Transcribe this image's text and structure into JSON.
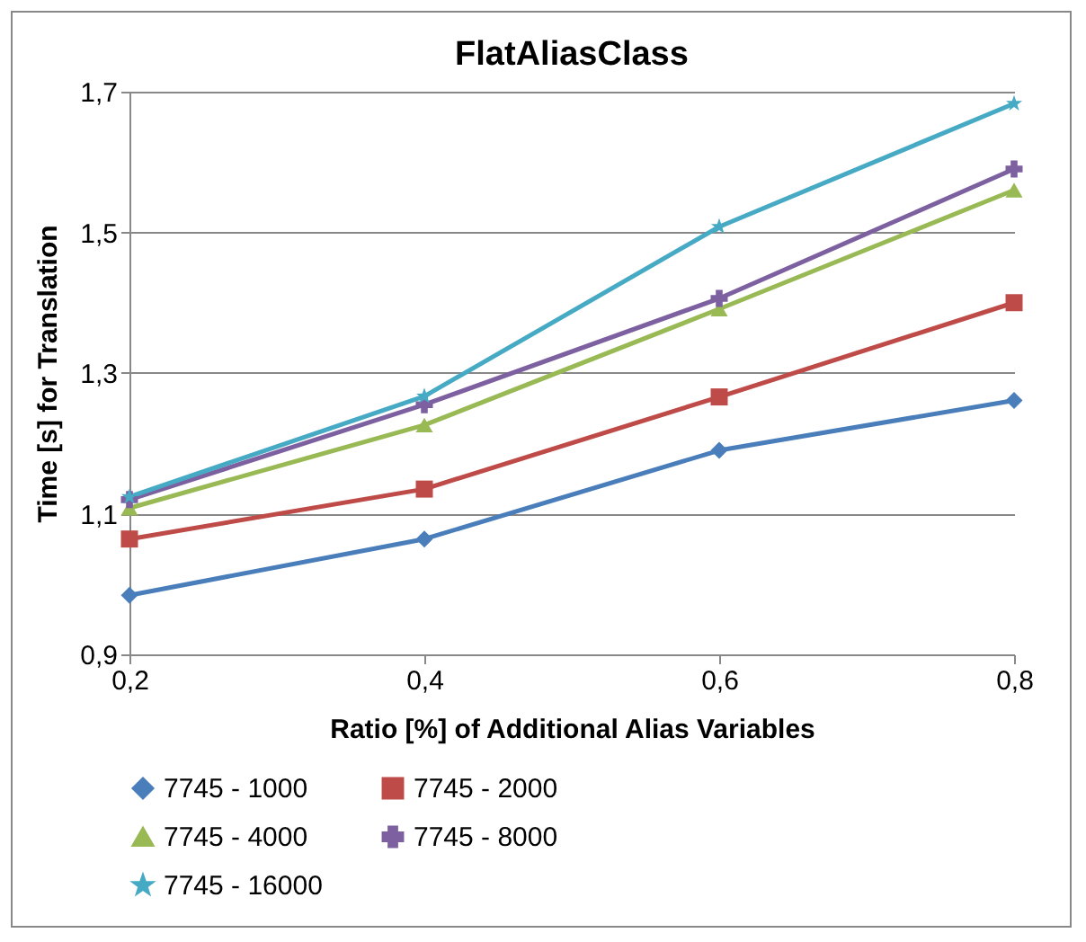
{
  "chart_data": {
    "type": "line",
    "title": "FlatAliasClass",
    "xlabel": "Ratio [%] of Additional Alias Variables",
    "ylabel": "Time [s] for Translation",
    "x": [
      0.2,
      0.4,
      0.6,
      0.8
    ],
    "xlim": [
      0.2,
      0.8
    ],
    "xticks": [
      {
        "value": 0.2,
        "label": "0,2"
      },
      {
        "value": 0.4,
        "label": "0,4"
      },
      {
        "value": 0.6,
        "label": "0,6"
      },
      {
        "value": 0.8,
        "label": "0,8"
      }
    ],
    "ylim": [
      0.9,
      1.7
    ],
    "yticks": [
      {
        "value": 0.9,
        "label": "0,9"
      },
      {
        "value": 1.1,
        "label": "1,1"
      },
      {
        "value": 1.3,
        "label": "1,3"
      },
      {
        "value": 1.5,
        "label": "1,5"
      },
      {
        "value": 1.7,
        "label": "1,7"
      }
    ],
    "grid": "y",
    "legend": "bottom",
    "series": [
      {
        "name": "7745 - 1000",
        "color": "#4a7ebb",
        "marker": "diamond",
        "values": [
          0.984,
          1.064,
          1.19,
          1.261
        ]
      },
      {
        "name": "7745 - 2000",
        "color": "#be4b48",
        "marker": "square",
        "values": [
          1.064,
          1.135,
          1.266,
          1.4
        ]
      },
      {
        "name": "7745 - 4000",
        "color": "#98b954",
        "marker": "triangle",
        "values": [
          1.108,
          1.226,
          1.391,
          1.56
        ]
      },
      {
        "name": "7745 - 8000",
        "color": "#7d60a0",
        "marker": "cross",
        "values": [
          1.12,
          1.255,
          1.406,
          1.59
        ]
      },
      {
        "name": "7745 - 16000",
        "color": "#46aac5",
        "marker": "star",
        "values": [
          1.124,
          1.267,
          1.508,
          1.683
        ]
      }
    ]
  }
}
